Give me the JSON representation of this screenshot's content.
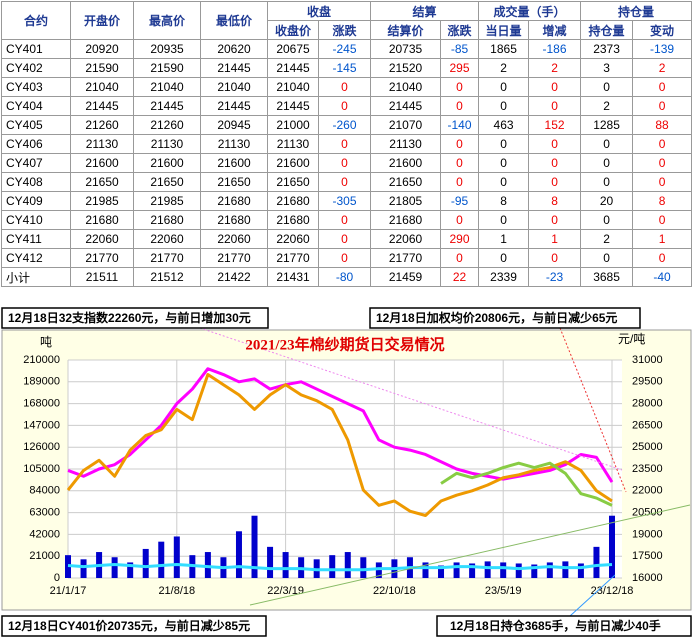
{
  "table": {
    "header_row1": [
      "合约",
      "开盘价",
      "最高价",
      "最低价",
      "收盘",
      "结算",
      "成交量（手）",
      "持仓量"
    ],
    "header_row2": [
      "收盘价",
      "涨跌",
      "结算价",
      "涨跌",
      "当日量",
      "增减",
      "持仓量",
      "变动"
    ],
    "rows": [
      [
        "CY401",
        20920,
        20935,
        20620,
        20675,
        -245,
        20735,
        -85,
        1865,
        -186,
        2373,
        -139
      ],
      [
        "CY402",
        21590,
        21590,
        21445,
        21445,
        -145,
        21520,
        295,
        2,
        2,
        3,
        2
      ],
      [
        "CY403",
        21040,
        21040,
        21040,
        21040,
        0,
        21040,
        0,
        0,
        0,
        0,
        0
      ],
      [
        "CY404",
        21445,
        21445,
        21445,
        21445,
        0,
        21445,
        0,
        0,
        0,
        2,
        0
      ],
      [
        "CY405",
        21260,
        21260,
        20945,
        21000,
        -260,
        21070,
        -140,
        463,
        152,
        1285,
        88
      ],
      [
        "CY406",
        21130,
        21130,
        21130,
        21130,
        0,
        21130,
        0,
        0,
        0,
        0,
        0
      ],
      [
        "CY407",
        21600,
        21600,
        21600,
        21600,
        0,
        21600,
        0,
        0,
        0,
        0,
        0
      ],
      [
        "CY408",
        21650,
        21650,
        21650,
        21650,
        0,
        21650,
        0,
        0,
        0,
        0,
        0
      ],
      [
        "CY409",
        21985,
        21985,
        21680,
        21680,
        -305,
        21805,
        -95,
        8,
        8,
        20,
        8
      ],
      [
        "CY410",
        21680,
        21680,
        21680,
        21680,
        0,
        21680,
        0,
        0,
        0,
        0,
        0
      ],
      [
        "CY411",
        22060,
        22060,
        22060,
        22060,
        0,
        22060,
        290,
        1,
        1,
        2,
        1
      ],
      [
        "CY412",
        21770,
        21770,
        21770,
        21770,
        0,
        21770,
        0,
        0,
        0,
        0,
        0
      ],
      [
        "小计",
        21511,
        21512,
        21422,
        21431,
        -80,
        21459,
        22,
        2339,
        -23,
        3685,
        -40
      ]
    ]
  },
  "annotations": [
    "12月18日32支指数22260元，与前日增加30元",
    "12月18日加权均价20806元，与前日减少65元",
    "12月18日CY401价20735元，与前日减少85元",
    "12月18日持仓3685手，与前日减少40手"
  ],
  "chart_data": {
    "type": "line",
    "title": "2021/23年棉纱期货日交易情况",
    "y_label": "吨",
    "y2_label": "元/吨",
    "categories": [
      "21/1/17",
      null,
      null,
      null,
      null,
      null,
      null,
      "21/8/18",
      null,
      null,
      null,
      null,
      null,
      null,
      "22/3/19",
      null,
      null,
      null,
      null,
      null,
      null,
      "22/10/18",
      null,
      null,
      null,
      null,
      null,
      null,
      "23/5/19",
      null,
      null,
      null,
      null,
      null,
      null,
      "23/12/18"
    ],
    "ylim": [
      0,
      210000
    ],
    "yticks": [
      0,
      21000,
      42000,
      63000,
      84000,
      105000,
      126000,
      147000,
      168000,
      189000,
      210000
    ],
    "y2lim": [
      16000,
      31000
    ],
    "y2ticks": [
      16000,
      17500,
      19000,
      20500,
      22000,
      23500,
      25000,
      26500,
      28000,
      29500,
      31000
    ],
    "grid": true,
    "series": [
      {
        "type": "bar",
        "axis": "y",
        "color": "#0000cc",
        "values": [
          22000,
          18000,
          25000,
          20000,
          15000,
          28000,
          35000,
          40000,
          22000,
          25000,
          20000,
          45000,
          60000,
          30000,
          25000,
          20000,
          18000,
          22000,
          25000,
          20000,
          15000,
          18000,
          20000,
          15000,
          12000,
          15000,
          14000,
          16000,
          15000,
          14000,
          13000,
          15000,
          16000,
          14000,
          30000,
          60000
        ]
      },
      {
        "type": "line",
        "axis": "y",
        "color": "#33ddff",
        "values": [
          12000,
          11000,
          12000,
          13000,
          12000,
          11000,
          12000,
          13000,
          12000,
          11000,
          10000,
          11000,
          10000,
          9000,
          9000,
          9000,
          8000,
          8000,
          8000,
          8000,
          9000,
          9000,
          10000,
          10000,
          10000,
          11000,
          11000,
          10000,
          10000,
          9000,
          10000,
          11000,
          10000,
          10000,
          12000,
          13000
        ]
      },
      {
        "type": "line",
        "axis": "y2",
        "color": "#ff00ff",
        "values": [
          23400,
          23000,
          23500,
          23800,
          24500,
          25500,
          26500,
          28000,
          29000,
          30400,
          30000,
          29500,
          29700,
          29000,
          29300,
          29500,
          29000,
          28500,
          28000,
          27500,
          25500,
          25000,
          24800,
          24500,
          24000,
          23500,
          23200,
          23000,
          22800,
          23000,
          23200,
          23400,
          23800,
          24500,
          24300,
          22600
        ]
      },
      {
        "type": "line",
        "axis": "y2",
        "color": "#ee9900",
        "values": [
          22050,
          23400,
          24100,
          23000,
          24800,
          25800,
          26200,
          27600,
          26900,
          30000,
          29300,
          28600,
          27600,
          28600,
          29300,
          28600,
          28200,
          27600,
          25500,
          22050,
          21000,
          21300,
          20600,
          20300,
          21300,
          21700,
          22000,
          22400,
          22900,
          23100,
          23400,
          23600,
          24000,
          23400,
          22000,
          21300
        ]
      },
      {
        "type": "line",
        "axis": "y2",
        "color": "#88cc44",
        "values": [
          null,
          null,
          null,
          null,
          null,
          null,
          null,
          null,
          null,
          null,
          null,
          null,
          null,
          null,
          null,
          null,
          null,
          null,
          null,
          null,
          null,
          null,
          null,
          null,
          22500,
          23200,
          22900,
          23200,
          23600,
          23900,
          23600,
          23900,
          23200,
          21800,
          21500,
          21000
        ]
      }
    ]
  }
}
